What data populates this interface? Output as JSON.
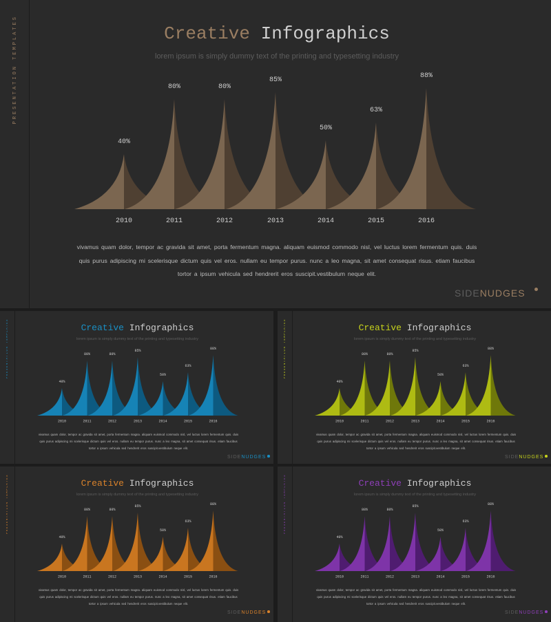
{
  "years": [
    "2010",
    "2011",
    "2012",
    "2013",
    "2014",
    "2015",
    "2016"
  ],
  "values": [
    40,
    80,
    80,
    85,
    50,
    63,
    88
  ],
  "labels": [
    "40%",
    "80%",
    "80%",
    "85%",
    "50%",
    "63%",
    "88%"
  ],
  "slides": [
    {
      "id": "brown",
      "side_label": "PRESENTATION TEMPLATES",
      "title_colored": "Creative",
      "title_plain": "Infographics",
      "subtitle": "lorem ipsum is simply dummy text of the printing and typesetting industry",
      "body": "vivamus quam dolor, tempor ac gravida sit amet, porta fermentum magna. aliquam euismod commodo nisl, vel luctus lorem fermentum quis. duis quis purus adipiscing mi scelerisque dictum quis vel eros. nullam eu tempor purus. nunc a leo magna, sit amet consequat risus. etiam faucibus tortor a ipsum vehicula sed hendrerit eros suscipit.vestibulum neque elit.",
      "brand_1": "SIDE",
      "brand_2": "NUDGES",
      "accent": "#9a7e62",
      "light": "#7b6650",
      "dark": "#4f4032"
    },
    {
      "id": "blue",
      "side_label": "PRESENTATION TEMPLATES",
      "title_colored": "Creative",
      "title_plain": "Infographics",
      "subtitle": "lorem ipsum is simply dummy text of the printing and typesetting industry",
      "body": "vivamus quam dolor, tempor ac gravida sit amet, porta fermentum magna. aliquam euismod commodo nisl, vel luctus lorem fermentum quis. duis quis purus adipiscing mi scelerisque dictum quis vel eros. nullam eu tempor purus. nunc a leo magna, sit amet consequat risus. etiam faucibus tortor a ipsum vehicula sed hendrerit eros suscipit.vestibulum neque elit.",
      "brand_1": "SIDE",
      "brand_2": "NUDGES",
      "accent": "#1a8fc4",
      "light": "#1683b6",
      "dark": "#0d5a80"
    },
    {
      "id": "lime",
      "side_label": "PRESENTATION TEMPLATES",
      "title_colored": "Creative",
      "title_plain": "Infographics",
      "subtitle": "lorem ipsum is simply dummy text of the printing and typesetting industry",
      "body": "vivamus quam dolor, tempor ac gravida sit amet, porta fermentum magna. aliquam euismod commodo nisl, vel luctus lorem fermentum quis. duis quis purus adipiscing mi scelerisque dictum quis vel eros. nullam eu tempor purus. nunc a leo magna, sit amet consequat risus. etiam faucibus tortor a ipsum vehicula sed hendrerit eros suscipit.vestibulum neque elit.",
      "brand_1": "SIDE",
      "brand_2": "NUDGES",
      "accent": "#c6d21c",
      "light": "#aebb13",
      "dark": "#6f780a"
    },
    {
      "id": "orange",
      "side_label": "PRESENTATION TEMPLATES",
      "title_colored": "Creative",
      "title_plain": "Infographics",
      "subtitle": "lorem ipsum is simply dummy text of the printing and typesetting industry",
      "body": "vivamus quam dolor, tempor ac gravida sit amet, porta fermentum magna. aliquam euismod commodo nisl, vel luctus lorem fermentum quis. duis quis purus adipiscing mi scelerisque dictum quis vel eros. nullam eu tempor purus. nunc a leo magna, sit amet consequat risus. etiam faucibus tortor a ipsum vehicula sed hendrerit eros suscipit.vestibulum neque elit.",
      "brand_1": "SIDE",
      "brand_2": "NUDGES",
      "accent": "#d9822b",
      "light": "#c97620",
      "dark": "#8a4f12"
    },
    {
      "id": "purple",
      "side_label": "PRESENTATION TEMPLATES",
      "title_colored": "Creative",
      "title_plain": "Infographics",
      "subtitle": "lorem ipsum is simply dummy text of the printing and typesetting industry",
      "body": "vivamus quam dolor, tempor ac gravida sit amet, porta fermentum magna. aliquam euismod commodo nisl, vel luctus lorem fermentum quis. duis quis purus adipiscing mi scelerisque dictum quis vel eros. nullam eu tempor purus. nunc a leo magna, sit amet consequat risus. etiam faucibus tortor a ipsum vehicula sed hendrerit eros suscipit.vestibulum neque elit.",
      "brand_1": "SIDE",
      "brand_2": "NUDGES",
      "accent": "#8e3fb8",
      "light": "#7e34a8",
      "dark": "#4f1c70"
    }
  ],
  "chart_data": [
    {
      "type": "area",
      "categories": [
        "2010",
        "2011",
        "2012",
        "2013",
        "2014",
        "2015",
        "2016"
      ],
      "values": [
        40,
        80,
        80,
        85,
        50,
        63,
        88
      ],
      "data_labels": [
        "40%",
        "80%",
        "80%",
        "85%",
        "50%",
        "63%",
        "88%"
      ],
      "title": "Creative Infographics",
      "subtitle": "lorem ipsum is simply dummy text of the printing and typesetting industry",
      "ylim": [
        0,
        100
      ],
      "grid": false,
      "legend": "none"
    },
    {
      "type": "area",
      "categories": [
        "2010",
        "2011",
        "2012",
        "2013",
        "2014",
        "2015",
        "2016"
      ],
      "values": [
        40,
        80,
        80,
        85,
        50,
        63,
        88
      ],
      "data_labels": [
        "40%",
        "80%",
        "80%",
        "85%",
        "50%",
        "63%",
        "88%"
      ],
      "title": "Creative Infographics",
      "ylim": [
        0,
        100
      ],
      "grid": false,
      "legend": "none"
    },
    {
      "type": "area",
      "categories": [
        "2010",
        "2011",
        "2012",
        "2013",
        "2014",
        "2015",
        "2016"
      ],
      "values": [
        40,
        80,
        80,
        85,
        50,
        63,
        88
      ],
      "data_labels": [
        "40%",
        "80%",
        "80%",
        "85%",
        "50%",
        "63%",
        "88%"
      ],
      "title": "Creative Infographics",
      "ylim": [
        0,
        100
      ],
      "grid": false,
      "legend": "none"
    },
    {
      "type": "area",
      "categories": [
        "2010",
        "2011",
        "2012",
        "2013",
        "2014",
        "2015",
        "2016"
      ],
      "values": [
        40,
        80,
        80,
        85,
        50,
        63,
        88
      ],
      "data_labels": [
        "40%",
        "80%",
        "80%",
        "85%",
        "50%",
        "63%",
        "88%"
      ],
      "title": "Creative Infographics",
      "ylim": [
        0,
        100
      ],
      "grid": false,
      "legend": "none"
    },
    {
      "type": "area",
      "categories": [
        "2010",
        "2011",
        "2012",
        "2013",
        "2014",
        "2015",
        "2016"
      ],
      "values": [
        40,
        80,
        80,
        85,
        50,
        63,
        88
      ],
      "data_labels": [
        "40%",
        "80%",
        "80%",
        "85%",
        "50%",
        "63%",
        "88%"
      ],
      "title": "Creative Infographics",
      "ylim": [
        0,
        100
      ],
      "grid": false,
      "legend": "none"
    }
  ]
}
